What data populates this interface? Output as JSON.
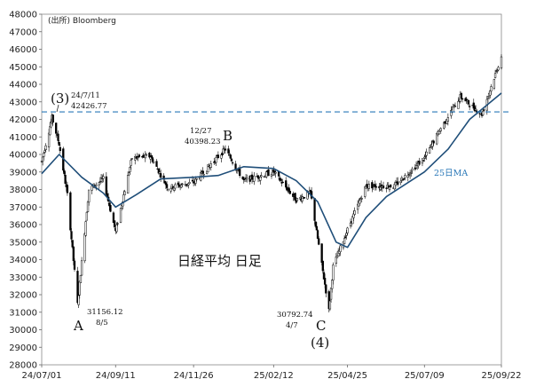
{
  "chart_data": {
    "type": "candlestick",
    "title": "日経平均 日足",
    "source": "(出所) Bloomberg",
    "ylim": [
      28000,
      48000
    ],
    "y_ticks": [
      28000,
      29000,
      30000,
      31000,
      32000,
      33000,
      34000,
      35000,
      36000,
      37000,
      38000,
      39000,
      40000,
      41000,
      42000,
      43000,
      44000,
      45000,
      46000,
      47000,
      48000
    ],
    "x_ticks": [
      "24/07/01",
      "24/09/11",
      "24/11/26",
      "25/02/12",
      "25/04/25",
      "25/07/09",
      "25/09/22"
    ],
    "x_range_label": [
      "24/07/01",
      "25/09/22"
    ],
    "ohlc_keypoints": [
      {
        "date": "24/07/01",
        "close": 39600
      },
      {
        "date": "24/07/11",
        "close": 42100
      },
      {
        "date": "24/07/18",
        "close": 40600
      },
      {
        "date": "24/07/26",
        "close": 37700
      },
      {
        "date": "24/08/05",
        "close": 31456
      },
      {
        "date": "24/08/16",
        "close": 38000
      },
      {
        "date": "24/08/30",
        "close": 38600
      },
      {
        "date": "24/09/11",
        "close": 35600
      },
      {
        "date": "24/09/27",
        "close": 39800
      },
      {
        "date": "24/10/15",
        "close": 39900
      },
      {
        "date": "24/11/01",
        "close": 38100
      },
      {
        "date": "24/11/26",
        "close": 38400
      },
      {
        "date": "24/12/27",
        "close": 40300
      },
      {
        "date": "25/01/14",
        "close": 38500
      },
      {
        "date": "25/02/12",
        "close": 39000
      },
      {
        "date": "25/03/06",
        "close": 37400
      },
      {
        "date": "25/03/20",
        "close": 37800
      },
      {
        "date": "25/04/07",
        "close": 31100
      },
      {
        "date": "25/04/11",
        "close": 33600
      },
      {
        "date": "25/04/25",
        "close": 35700
      },
      {
        "date": "25/05/13",
        "close": 38200
      },
      {
        "date": "25/06/10",
        "close": 38200
      },
      {
        "date": "25/07/09",
        "close": 39800
      },
      {
        "date": "25/07/25",
        "close": 41500
      },
      {
        "date": "25/08/13",
        "close": 43300
      },
      {
        "date": "25/09/03",
        "close": 42300
      },
      {
        "date": "25/09/22",
        "close": 45600
      }
    ],
    "moving_average": {
      "name": "25日MA",
      "color": "#1f4e79",
      "points": [
        {
          "date": "24/07/01",
          "value": 38900
        },
        {
          "date": "24/07/18",
          "value": 40000
        },
        {
          "date": "24/08/09",
          "value": 38700
        },
        {
          "date": "24/08/30",
          "value": 37800
        },
        {
          "date": "24/09/11",
          "value": 37000
        },
        {
          "date": "24/10/01",
          "value": 37700
        },
        {
          "date": "24/10/25",
          "value": 38600
        },
        {
          "date": "24/11/26",
          "value": 38700
        },
        {
          "date": "24/12/20",
          "value": 38800
        },
        {
          "date": "25/01/14",
          "value": 39300
        },
        {
          "date": "25/02/12",
          "value": 39200
        },
        {
          "date": "25/03/06",
          "value": 38500
        },
        {
          "date": "25/03/27",
          "value": 37300
        },
        {
          "date": "25/04/14",
          "value": 35000
        },
        {
          "date": "25/04/25",
          "value": 34700
        },
        {
          "date": "25/05/13",
          "value": 36400
        },
        {
          "date": "25/06/02",
          "value": 37600
        },
        {
          "date": "25/07/09",
          "value": 39000
        },
        {
          "date": "25/08/01",
          "value": 40300
        },
        {
          "date": "25/08/22",
          "value": 42000
        },
        {
          "date": "25/09/22",
          "value": 43500
        }
      ]
    },
    "reference_line": {
      "value": 42427,
      "style": "dashed",
      "color": "#2a78b8"
    },
    "annotations": {
      "peak_label": "(3)",
      "peak_date": "24/7/11",
      "peak_value": "42426.77",
      "a_label": "A",
      "a_value": "31156.12",
      "a_date": "8/5",
      "b_label": "B",
      "b_date": "12/27",
      "b_value": "40398.23",
      "c_label": "C",
      "c_value": "30792.74",
      "c_date": "4/7",
      "c_sub": "(4)",
      "ma_label": "25日MA"
    },
    "colors": {
      "up": "#ffffff",
      "down": "#000000",
      "candle_edge": "#000000",
      "ma": "#1f4e79",
      "ref": "#2a78b8"
    }
  }
}
